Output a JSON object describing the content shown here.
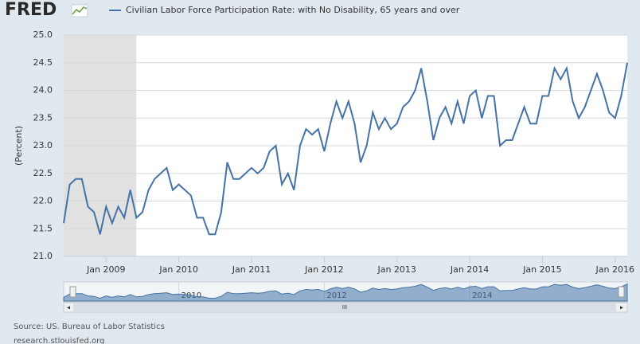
{
  "chart_data": {
    "type": "line",
    "logo": "FRED",
    "title": "Civilian Labor Force Participation Rate: with No Disability, 65 years and over",
    "y_label": "(Percent)",
    "source": "Source: US. Bureau of Labor Statistics",
    "source_url": "research.stlouisfed.org",
    "x": [
      "2008-06",
      "2008-07",
      "2008-08",
      "2008-09",
      "2008-10",
      "2008-11",
      "2008-12",
      "2009-01",
      "2009-02",
      "2009-03",
      "2009-04",
      "2009-05",
      "2009-06",
      "2009-07",
      "2009-08",
      "2009-09",
      "2009-10",
      "2009-11",
      "2009-12",
      "2010-01",
      "2010-02",
      "2010-03",
      "2010-04",
      "2010-05",
      "2010-06",
      "2010-07",
      "2010-08",
      "2010-09",
      "2010-10",
      "2010-11",
      "2010-12",
      "2011-01",
      "2011-02",
      "2011-03",
      "2011-04",
      "2011-05",
      "2011-06",
      "2011-07",
      "2011-08",
      "2011-09",
      "2011-10",
      "2011-11",
      "2011-12",
      "2012-01",
      "2012-02",
      "2012-03",
      "2012-04",
      "2012-05",
      "2012-06",
      "2012-07",
      "2012-08",
      "2012-09",
      "2012-10",
      "2012-11",
      "2012-12",
      "2013-01",
      "2013-02",
      "2013-03",
      "2013-04",
      "2013-05",
      "2013-06",
      "2013-07",
      "2013-08",
      "2013-09",
      "2013-10",
      "2013-11",
      "2013-12",
      "2014-01",
      "2014-02",
      "2014-03",
      "2014-04",
      "2014-05",
      "2014-06",
      "2014-07",
      "2014-08",
      "2014-09",
      "2014-10",
      "2014-11",
      "2014-12",
      "2015-01",
      "2015-02",
      "2015-03",
      "2015-04",
      "2015-05",
      "2015-06",
      "2015-07",
      "2015-08",
      "2015-09",
      "2015-10",
      "2015-11",
      "2015-12",
      "2016-01",
      "2016-02",
      "2016-03"
    ],
    "series": [
      {
        "name": "Civilian Labor Force Participation Rate: with No Disability, 65 years and over",
        "color": "#4572a7",
        "values": [
          21.6,
          22.3,
          22.4,
          22.4,
          21.9,
          21.8,
          21.4,
          21.9,
          21.6,
          21.9,
          21.7,
          22.2,
          21.7,
          21.8,
          22.2,
          22.4,
          22.5,
          22.6,
          22.2,
          22.3,
          22.2,
          22.1,
          21.7,
          21.7,
          21.4,
          21.4,
          21.8,
          22.7,
          22.4,
          22.4,
          22.5,
          22.6,
          22.5,
          22.6,
          22.9,
          23.0,
          22.3,
          22.5,
          22.2,
          23.0,
          23.3,
          23.2,
          23.3,
          22.9,
          23.4,
          23.8,
          23.5,
          23.8,
          23.4,
          22.7,
          23.0,
          23.6,
          23.3,
          23.5,
          23.3,
          23.4,
          23.7,
          23.8,
          24.0,
          24.4,
          23.8,
          23.1,
          23.5,
          23.7,
          23.4,
          23.8,
          23.4,
          23.9,
          24.0,
          23.5,
          23.9,
          23.9,
          23.0,
          23.1,
          23.1,
          23.4,
          23.7,
          23.4,
          23.4,
          23.9,
          23.9,
          24.4,
          24.2,
          24.4,
          23.8,
          23.5,
          23.7,
          24.0,
          24.3,
          24.0,
          23.6,
          23.5,
          23.9,
          24.5
        ]
      }
    ],
    "recessions": [
      {
        "start": "2008-06",
        "end": "2009-06"
      }
    ],
    "xlim": [
      "2008-06",
      "2016-03"
    ],
    "xticks": [
      {
        "value": "2009-01",
        "label": "Jan 2009"
      },
      {
        "value": "2010-01",
        "label": "Jan 2010"
      },
      {
        "value": "2011-01",
        "label": "Jan 2011"
      },
      {
        "value": "2012-01",
        "label": "Jan 2012"
      },
      {
        "value": "2013-01",
        "label": "Jan 2013"
      },
      {
        "value": "2014-01",
        "label": "Jan 2014"
      },
      {
        "value": "2015-01",
        "label": "Jan 2015"
      },
      {
        "value": "2016-01",
        "label": "Jan 2016"
      }
    ],
    "ylim": [
      21,
      25
    ],
    "yticks": [
      {
        "value": 21,
        "label": "21.0"
      },
      21.5,
      {
        "value": 22,
        "label": "22.0"
      },
      22.5,
      {
        "value": 23,
        "label": "23.0"
      },
      23.5,
      {
        "value": 24,
        "label": "24.0"
      },
      24.5,
      {
        "value": 25,
        "label": "25.0"
      }
    ],
    "navigator_ticks": [
      {
        "value": "2010-01",
        "label": "2010"
      },
      {
        "value": "2012-01",
        "label": "2012"
      },
      {
        "value": "2014-01",
        "label": "2014"
      }
    ],
    "grid": true
  }
}
